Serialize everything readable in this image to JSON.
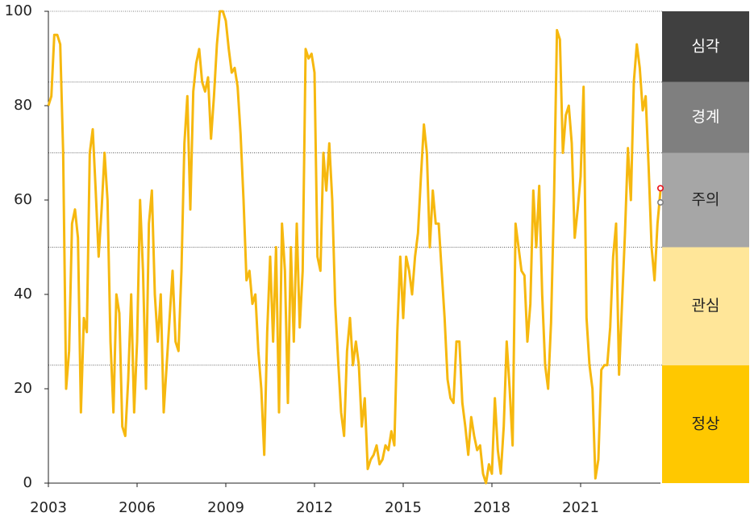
{
  "chart_data": {
    "type": "line",
    "x": [
      2003,
      2003.1,
      2003.2,
      2003.3,
      2003.4,
      2003.5,
      2003.6,
      2003.7,
      2003.8,
      2003.9,
      2004,
      2004.1,
      2004.2,
      2004.3,
      2004.4,
      2004.5,
      2004.6,
      2004.7,
      2004.8,
      2004.9,
      2005,
      2005.1,
      2005.2,
      2005.3,
      2005.4,
      2005.5,
      2005.6,
      2005.7,
      2005.8,
      2005.9,
      2006,
      2006.1,
      2006.2,
      2006.3,
      2006.4,
      2006.5,
      2006.6,
      2006.7,
      2006.8,
      2006.9,
      2007,
      2007.1,
      2007.2,
      2007.3,
      2007.4,
      2007.5,
      2007.6,
      2007.7,
      2007.8,
      2007.9,
      2008,
      2008.1,
      2008.2,
      2008.3,
      2008.4,
      2008.5,
      2008.6,
      2008.7,
      2008.8,
      2008.9,
      2009,
      2009.1,
      2009.2,
      2009.3,
      2009.4,
      2009.5,
      2009.6,
      2009.7,
      2009.8,
      2009.9,
      2010,
      2010.1,
      2010.2,
      2010.3,
      2010.4,
      2010.5,
      2010.6,
      2010.7,
      2010.8,
      2010.9,
      2011,
      2011.1,
      2011.2,
      2011.3,
      2011.4,
      2011.5,
      2011.6,
      2011.7,
      2011.8,
      2011.9,
      2012,
      2012.1,
      2012.2,
      2012.3,
      2012.4,
      2012.5,
      2012.6,
      2012.7,
      2012.8,
      2012.9,
      2013,
      2013.1,
      2013.2,
      2013.3,
      2013.4,
      2013.5,
      2013.6,
      2013.7,
      2013.8,
      2013.9,
      2014,
      2014.1,
      2014.2,
      2014.3,
      2014.4,
      2014.5,
      2014.6,
      2014.7,
      2014.8,
      2014.9,
      2015,
      2015.1,
      2015.2,
      2015.3,
      2015.4,
      2015.5,
      2015.6,
      2015.7,
      2015.8,
      2015.9,
      2016,
      2016.1,
      2016.2,
      2016.3,
      2016.4,
      2016.5,
      2016.6,
      2016.7,
      2016.8,
      2016.9,
      2017,
      2017.1,
      2017.2,
      2017.3,
      2017.4,
      2017.5,
      2017.6,
      2017.7,
      2017.8,
      2017.9,
      2018,
      2018.1,
      2018.2,
      2018.3,
      2018.4,
      2018.5,
      2018.6,
      2018.7,
      2018.8,
      2018.9,
      2019,
      2019.1,
      2019.2,
      2019.3,
      2019.4,
      2019.5,
      2019.6,
      2019.7,
      2019.8,
      2019.9,
      2020,
      2020.1,
      2020.2,
      2020.3,
      2020.4,
      2020.5,
      2020.6,
      2020.7,
      2020.8,
      2020.9,
      2021,
      2021.1,
      2021.2,
      2021.3,
      2021.4,
      2021.5,
      2021.6,
      2021.7,
      2021.8,
      2021.9,
      2022,
      2022.1,
      2022.2,
      2022.3,
      2022.4,
      2022.5,
      2022.6,
      2022.7,
      2022.8,
      2022.9,
      2023,
      2023.1,
      2023.2,
      2023.3,
      2023.4,
      2023.5,
      2023.6,
      2023.7
    ],
    "series": [
      {
        "color": "#f6b80f",
        "values": [
          80,
          82,
          95,
          95,
          93,
          70,
          20,
          28,
          55,
          58,
          52,
          15,
          35,
          32,
          70,
          75,
          62,
          48,
          58,
          70,
          60,
          30,
          15,
          40,
          36,
          12,
          10,
          22,
          40,
          15,
          30,
          60,
          45,
          20,
          55,
          62,
          40,
          30,
          40,
          15,
          25,
          35,
          45,
          30,
          28,
          45,
          72,
          82,
          58,
          83,
          89,
          92,
          85,
          83,
          86,
          73,
          82,
          93,
          100,
          100,
          98,
          92,
          87,
          88,
          84,
          74,
          60,
          43,
          45,
          38,
          40,
          28,
          20,
          6,
          32,
          48,
          30,
          50,
          15,
          55,
          45,
          17,
          50,
          30,
          55,
          33,
          45,
          92,
          90,
          91,
          87,
          48,
          45,
          70,
          62,
          72,
          60,
          38,
          26,
          15,
          10,
          28,
          35,
          25,
          30,
          25,
          12,
          18,
          3,
          5,
          6,
          8,
          4,
          5,
          8,
          7,
          11,
          8,
          32,
          48,
          35,
          48,
          45,
          40,
          48,
          53,
          65,
          76,
          70,
          50,
          62,
          55,
          55,
          45,
          35,
          22,
          18,
          17,
          30,
          30,
          17,
          12,
          6,
          14,
          10,
          7,
          8,
          2,
          0,
          4,
          2,
          18,
          7,
          2,
          12,
          30,
          20,
          8,
          55,
          50,
          45,
          44,
          30,
          38,
          62,
          50,
          63,
          40,
          25,
          20,
          34,
          60,
          96,
          94,
          70,
          78,
          80,
          72,
          52,
          58,
          65,
          84,
          35,
          25,
          20,
          1,
          5,
          24,
          25,
          25,
          33,
          48,
          55,
          23,
          38,
          53,
          71,
          60,
          85,
          93,
          88,
          79,
          82,
          67,
          50,
          43,
          55,
          62
        ]
      }
    ],
    "points": [
      {
        "x": 2023.7,
        "value": 62.5,
        "color": "#e8101a"
      },
      {
        "x": 2023.7,
        "value": 59.5,
        "color": "#7f7f7f"
      }
    ],
    "bands": [
      {
        "label": "정상",
        "from": 0,
        "to": 25,
        "color": "#ffc800",
        "text_color": "#222222"
      },
      {
        "label": "관심",
        "from": 25,
        "to": 50,
        "color": "#ffe699",
        "text_color": "#222222"
      },
      {
        "label": "주의",
        "from": 50,
        "to": 70,
        "color": "#a6a6a6",
        "text_color": "#222222"
      },
      {
        "label": "경계",
        "from": 70,
        "to": 85,
        "color": "#7f7f7f",
        "text_color": "#ffffff"
      },
      {
        "label": "심각",
        "from": 85,
        "to": 100,
        "color": "#404040",
        "text_color": "#ffffff"
      }
    ],
    "xlim": [
      2003,
      2023.7
    ],
    "xticks": [
      2003,
      2006,
      2009,
      2012,
      2015,
      2018,
      2021
    ],
    "ylim": [
      0,
      100
    ],
    "yticks": [
      0,
      20,
      40,
      60,
      80,
      100
    ]
  }
}
